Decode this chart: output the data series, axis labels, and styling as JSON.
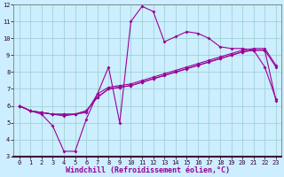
{
  "bg_color": "#cceeff",
  "line_color": "#990099",
  "grid_color": "#99cccc",
  "xlim": [
    -0.5,
    23.5
  ],
  "ylim": [
    3,
    12
  ],
  "xticks": [
    0,
    1,
    2,
    3,
    4,
    5,
    6,
    7,
    8,
    9,
    10,
    11,
    12,
    13,
    14,
    15,
    16,
    17,
    18,
    19,
    20,
    21,
    22,
    23
  ],
  "yticks": [
    3,
    4,
    5,
    6,
    7,
    8,
    9,
    10,
    11,
    12
  ],
  "line1_x": [
    0,
    1,
    2,
    3,
    4,
    5,
    6,
    7,
    8,
    9,
    10,
    11,
    12,
    13,
    14,
    15,
    16,
    17,
    18,
    19,
    20,
    21,
    22,
    23
  ],
  "line1_y": [
    6.0,
    5.7,
    5.5,
    4.8,
    3.3,
    3.3,
    5.2,
    6.7,
    8.3,
    5.0,
    11.0,
    11.9,
    11.6,
    9.8,
    10.1,
    10.4,
    10.3,
    10.0,
    9.5,
    9.4,
    9.4,
    9.3,
    8.3,
    6.4
  ],
  "line2_x": [
    0,
    1,
    2,
    3,
    4,
    5,
    6,
    7,
    8,
    9,
    10,
    11,
    12,
    13,
    14,
    15,
    16,
    17,
    18,
    19,
    20,
    21,
    22,
    23
  ],
  "line2_y": [
    6.0,
    5.7,
    5.6,
    5.5,
    5.5,
    5.5,
    5.7,
    6.5,
    7.0,
    7.1,
    7.2,
    7.4,
    7.6,
    7.8,
    8.0,
    8.2,
    8.4,
    8.6,
    8.8,
    9.0,
    9.2,
    9.3,
    9.3,
    8.3
  ],
  "line3_x": [
    0,
    1,
    2,
    3,
    4,
    5,
    6,
    7,
    8,
    9,
    10,
    11,
    12,
    13,
    14,
    15,
    16,
    17,
    18,
    19,
    20,
    21,
    22,
    23
  ],
  "line3_y": [
    6.0,
    5.7,
    5.6,
    5.5,
    5.4,
    5.5,
    5.6,
    6.7,
    7.1,
    7.2,
    7.3,
    7.5,
    7.7,
    7.9,
    8.1,
    8.3,
    8.5,
    8.7,
    8.9,
    9.1,
    9.3,
    9.4,
    9.4,
    8.4
  ],
  "line4_x": [
    0,
    1,
    2,
    3,
    4,
    5,
    6,
    7,
    8,
    9,
    10,
    11,
    12,
    13,
    14,
    15,
    16,
    17,
    18,
    19,
    20,
    21,
    22,
    23
  ],
  "line4_y": [
    6.0,
    5.7,
    5.6,
    5.5,
    5.5,
    5.5,
    5.7,
    6.5,
    7.0,
    7.1,
    7.2,
    7.4,
    7.6,
    7.8,
    8.0,
    8.2,
    8.4,
    8.6,
    8.8,
    9.0,
    9.2,
    9.3,
    9.3,
    6.3
  ],
  "xlabel": "Windchill (Refroidissement éolien,°C)",
  "markersize": 2.0,
  "linewidth": 0.8,
  "tick_fontsize": 5.0,
  "xlabel_fontsize": 6.0
}
